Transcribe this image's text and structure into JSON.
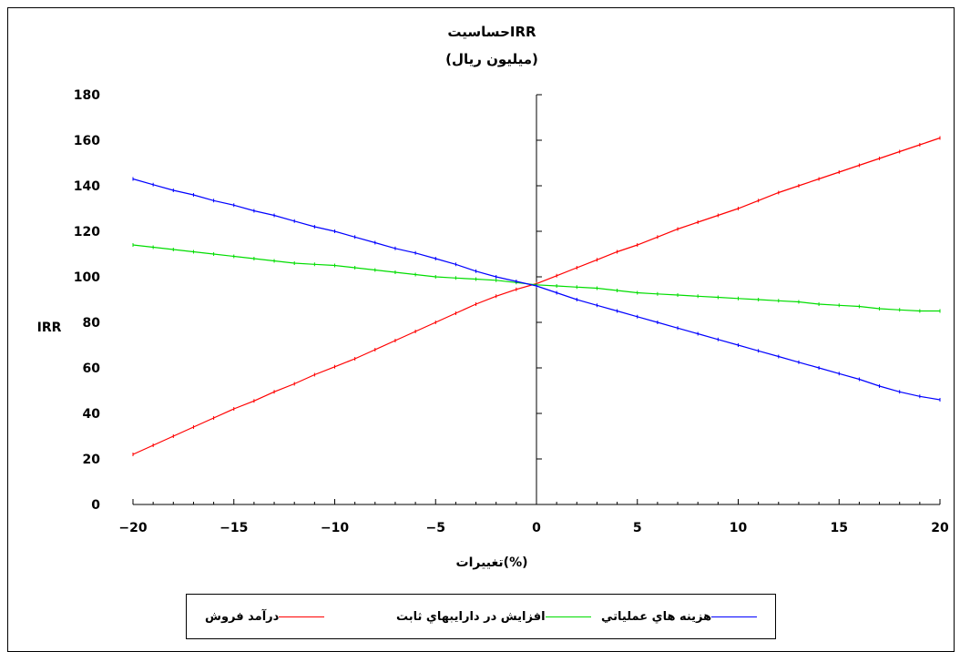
{
  "chart_data": {
    "type": "line",
    "title": "حساسيتIRR",
    "subtitle": "(ميليون ريال)",
    "xlabel": "تغييرات(%)",
    "ylabel": "IRR",
    "xlim": [
      -20,
      20
    ],
    "ylim": [
      0,
      180
    ],
    "x_ticks": [
      "−20",
      "−15",
      "−10",
      "−5",
      "0",
      "5",
      "10",
      "15",
      "20"
    ],
    "y_ticks": [
      "0",
      "20",
      "40",
      "60",
      "80",
      "100",
      "120",
      "140",
      "160",
      "180"
    ],
    "x": [
      -20,
      -19,
      -18,
      -17,
      -16,
      -15,
      -14,
      -13,
      -12,
      -11,
      -10,
      -9,
      -8,
      -7,
      -6,
      -5,
      -4,
      -3,
      -2,
      -1,
      0,
      1,
      2,
      3,
      4,
      5,
      6,
      7,
      8,
      9,
      10,
      11,
      12,
      13,
      14,
      15,
      16,
      17,
      18,
      19,
      20
    ],
    "series": [
      {
        "name": "درآمد فروش",
        "color": "#ff0000",
        "values": [
          22,
          26,
          30,
          34,
          38,
          42,
          45.5,
          49.5,
          53,
          57,
          60.5,
          64,
          68,
          72,
          76,
          80,
          84,
          88,
          91.5,
          94.5,
          97,
          100.5,
          104,
          107.5,
          111,
          114,
          117.5,
          121,
          124,
          127,
          130,
          133.5,
          137,
          140,
          143,
          146,
          149,
          152,
          155,
          158,
          161
        ]
      },
      {
        "name": "افزايش در دارايبهاي ثابت",
        "color": "#00dd00",
        "values": [
          114,
          113,
          112,
          111,
          110,
          109,
          108,
          107,
          106,
          105.5,
          105,
          104,
          103,
          102,
          101,
          100,
          99.5,
          99,
          98.5,
          97.5,
          96.5,
          96,
          95.5,
          95,
          94,
          93,
          92.5,
          92,
          91.5,
          91,
          90.5,
          90,
          89.5,
          89,
          88,
          87.5,
          87,
          86,
          85.5,
          85,
          85
        ]
      },
      {
        "name": "هزينه هاي عملياتي",
        "color": "#0000ff",
        "values": [
          143,
          140.5,
          138,
          136,
          133.5,
          131.5,
          129,
          127,
          124.5,
          122,
          120,
          117.5,
          115,
          112.5,
          110.5,
          108,
          105.5,
          102.5,
          100,
          98,
          96,
          93,
          90,
          87.5,
          85,
          82.5,
          80,
          77.5,
          75,
          72.5,
          70,
          67.5,
          65,
          62.5,
          60,
          57.5,
          55,
          52,
          49.5,
          47.5,
          46
        ]
      }
    ],
    "legend_position": "bottom",
    "grid": false
  }
}
